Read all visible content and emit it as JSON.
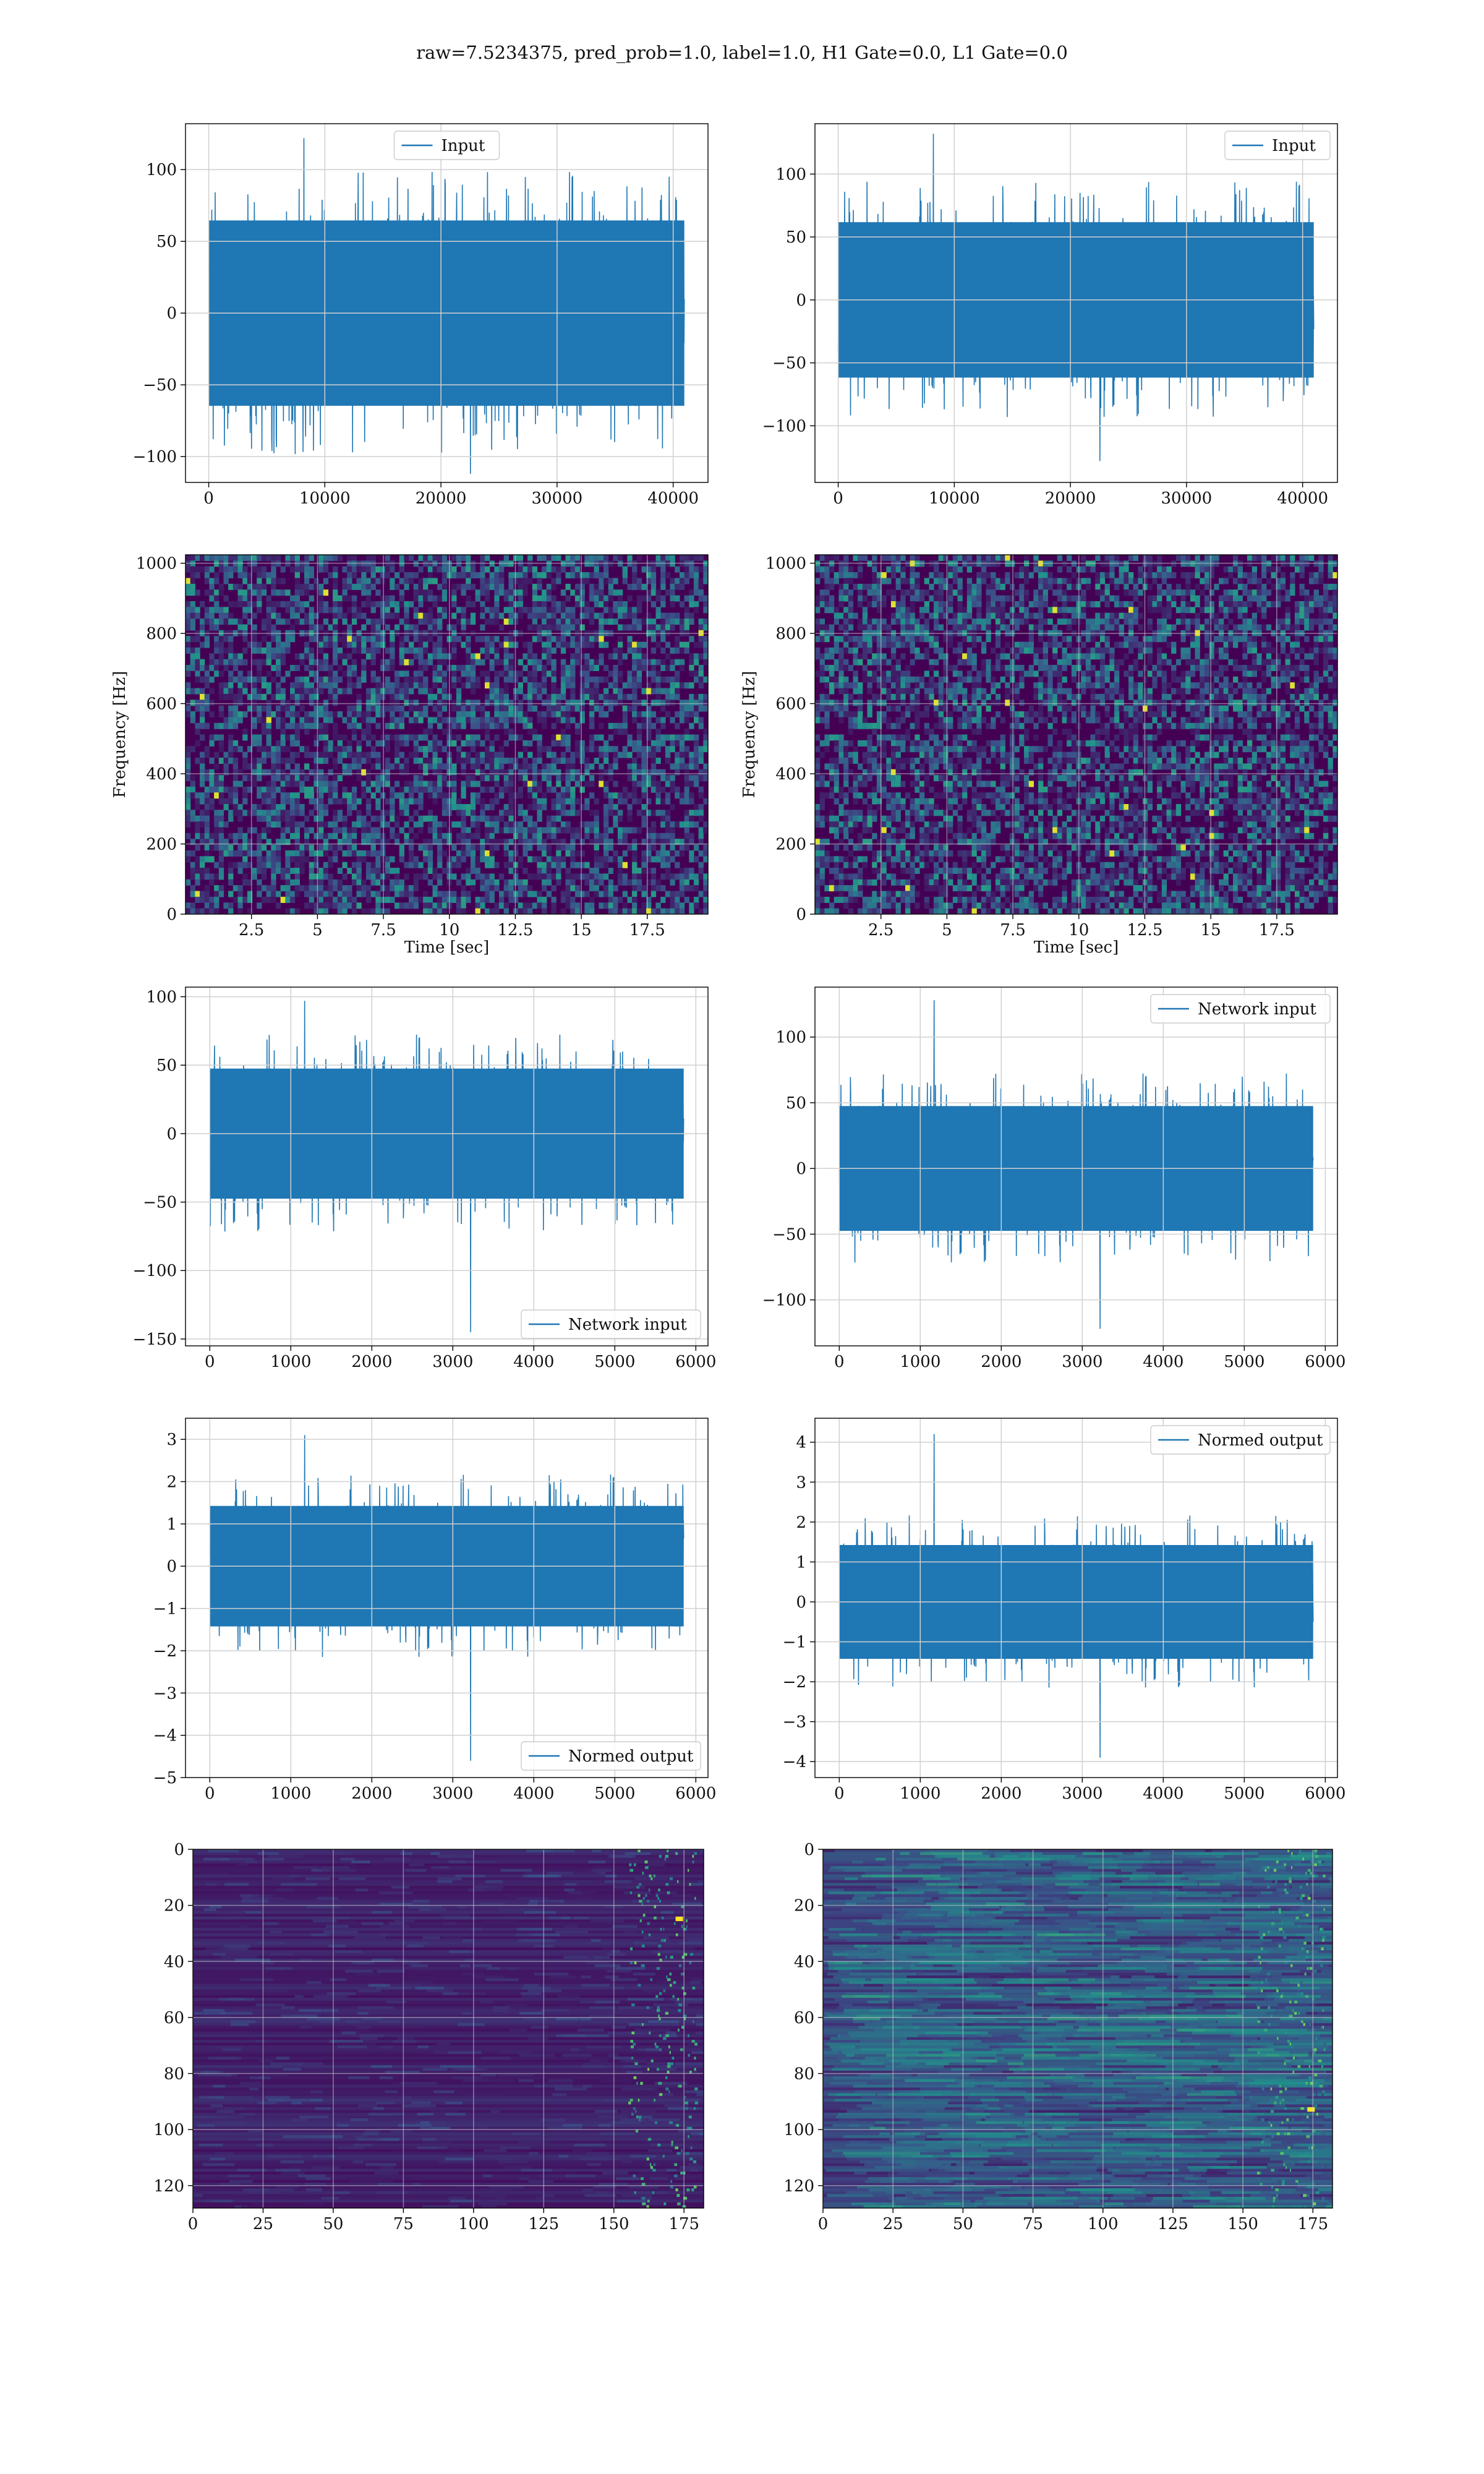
{
  "suptitle": "raw=7.5234375, pred_prob=1.0, label=1.0, H1 Gate=0.0, L1 Gate=0.0",
  "colors": {
    "line": "#1f77b4",
    "grid": "#d0d0d0",
    "viridis_dark": "#440154",
    "viridis_mid": "#3b528b",
    "viridis_teal": "#21918c",
    "viridis_green": "#5ec962",
    "viridis_yellow": "#fde725"
  },
  "chart_data": [
    {
      "id": "r1l",
      "type": "line",
      "row": 1,
      "col": "left",
      "legend": "Input",
      "legend_loc": "upper center",
      "xlim": [
        -2000,
        43000
      ],
      "ylim": [
        -118,
        132
      ],
      "xticks": [
        0,
        10000,
        20000,
        30000,
        40000
      ],
      "yticks": [
        -100,
        -50,
        0,
        50,
        100
      ],
      "signal": {
        "x_start": 0,
        "x_end": 40960,
        "amplitude": 68,
        "spike_max": 122,
        "spike_min": -112
      },
      "grid": true
    },
    {
      "id": "r1r",
      "type": "line",
      "row": 1,
      "col": "right",
      "legend": "Input",
      "legend_loc": "upper right",
      "xlim": [
        -2000,
        43000
      ],
      "ylim": [
        -145,
        140
      ],
      "xticks": [
        0,
        10000,
        20000,
        30000,
        40000
      ],
      "yticks": [
        -100,
        -50,
        0,
        50,
        100
      ],
      "signal": {
        "x_start": 0,
        "x_end": 40960,
        "amplitude": 65,
        "spike_max": 132,
        "spike_min": -128
      },
      "grid": true
    },
    {
      "id": "r2l",
      "type": "heatmap",
      "row": 2,
      "col": "left",
      "xlabel": "Time [sec]",
      "ylabel": "Frequency [Hz]",
      "xlim": [
        0,
        19.8
      ],
      "ylim": [
        0,
        1024
      ],
      "xticks": [
        2.5,
        5.0,
        7.5,
        10.0,
        12.5,
        15.0,
        17.5
      ],
      "yticks": [
        0,
        200,
        400,
        600,
        800,
        1000
      ],
      "colormap": "viridis",
      "grid": true
    },
    {
      "id": "r2r",
      "type": "heatmap",
      "row": 2,
      "col": "right",
      "xlabel": "Time [sec]",
      "ylabel": "Frequency [Hz]",
      "xlim": [
        0,
        19.8
      ],
      "ylim": [
        0,
        1024
      ],
      "xticks": [
        2.5,
        5.0,
        7.5,
        10.0,
        12.5,
        15.0,
        17.5
      ],
      "yticks": [
        0,
        200,
        400,
        600,
        800,
        1000
      ],
      "colormap": "viridis",
      "grid": true
    },
    {
      "id": "r3l",
      "type": "line",
      "row": 3,
      "col": "left",
      "legend": "Network input",
      "legend_loc": "lower right",
      "xlim": [
        -300,
        6150
      ],
      "ylim": [
        -155,
        107
      ],
      "xticks": [
        0,
        1000,
        2000,
        3000,
        4000,
        5000,
        6000
      ],
      "yticks": [
        -150,
        -100,
        -50,
        0,
        50,
        100
      ],
      "signal": {
        "x_start": 0,
        "x_end": 5850,
        "amplitude": 50,
        "spike_max": 97,
        "spike_min": -145
      },
      "grid": true
    },
    {
      "id": "r3r",
      "type": "line",
      "row": 3,
      "col": "right",
      "legend": "Network input",
      "legend_loc": "upper right",
      "xlim": [
        -300,
        6150
      ],
      "ylim": [
        -135,
        138
      ],
      "xticks": [
        0,
        1000,
        2000,
        3000,
        4000,
        5000,
        6000
      ],
      "yticks": [
        -100,
        -50,
        0,
        50,
        100
      ],
      "signal": {
        "x_start": 0,
        "x_end": 5850,
        "amplitude": 50,
        "spike_max": 128,
        "spike_min": -122
      },
      "grid": true
    },
    {
      "id": "r4l",
      "type": "line",
      "row": 4,
      "col": "left",
      "legend": "Normed output",
      "legend_loc": "lower right",
      "xlim": [
        -300,
        6150
      ],
      "ylim": [
        -5,
        3.5
      ],
      "xticks": [
        0,
        1000,
        2000,
        3000,
        4000,
        5000,
        6000
      ],
      "yticks": [
        -5,
        -4,
        -3,
        -2,
        -1,
        0,
        1,
        2,
        3
      ],
      "signal": {
        "x_start": 0,
        "x_end": 5850,
        "amplitude": 1.5,
        "spike_max": 3.1,
        "spike_min": -4.6
      },
      "grid": true
    },
    {
      "id": "r4r",
      "type": "line",
      "row": 4,
      "col": "right",
      "legend": "Normed output",
      "legend_loc": "upper right",
      "xlim": [
        -300,
        6150
      ],
      "ylim": [
        -4.4,
        4.6
      ],
      "xticks": [
        0,
        1000,
        2000,
        3000,
        4000,
        5000,
        6000
      ],
      "yticks": [
        -4,
        -3,
        -2,
        -1,
        0,
        1,
        2,
        3,
        4
      ],
      "signal": {
        "x_start": 0,
        "x_end": 5850,
        "amplitude": 1.5,
        "spike_max": 4.2,
        "spike_min": -3.9
      },
      "grid": true
    },
    {
      "id": "r5l",
      "type": "heatmap",
      "row": 5,
      "col": "left",
      "xlim": [
        0,
        182
      ],
      "ylim": [
        128,
        0
      ],
      "xticks": [
        0,
        25,
        50,
        75,
        100,
        125,
        150,
        175
      ],
      "yticks": [
        0,
        20,
        40,
        60,
        80,
        100,
        120
      ],
      "colormap": "viridis",
      "grid": true
    },
    {
      "id": "r5r",
      "type": "heatmap",
      "row": 5,
      "col": "right",
      "xlim": [
        0,
        182
      ],
      "ylim": [
        128,
        0
      ],
      "xticks": [
        0,
        25,
        50,
        75,
        100,
        125,
        150,
        175
      ],
      "yticks": [
        0,
        20,
        40,
        60,
        80,
        100,
        120
      ],
      "colormap": "viridis",
      "grid": true
    }
  ]
}
